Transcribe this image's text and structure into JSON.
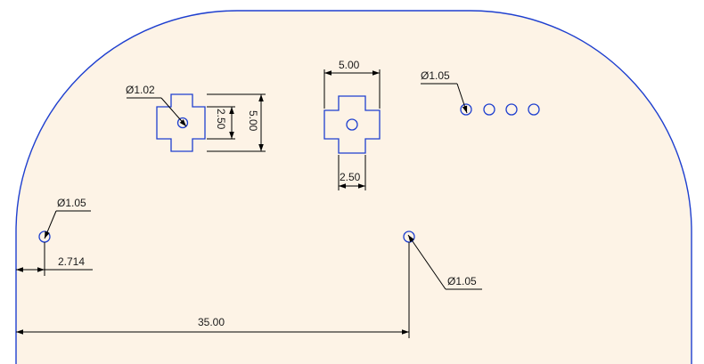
{
  "drawing": {
    "outline_color": "#1e3fcf",
    "background_color": "#fdf3e6",
    "dimension_color": "#000000",
    "labels": {
      "dia_cross_left": "Ø1.02",
      "dia_holes_row": "Ø1.05",
      "dia_left_hole": "Ø1.05",
      "dia_center_hole": "Ø1.05",
      "width_cross_center": "5.00",
      "slot_cross_center": "2.50",
      "height_cross_left": "5.00",
      "slot_cross_left": "2.50",
      "offset_left_hole": "2.714",
      "span_bottom": "35.00"
    }
  }
}
